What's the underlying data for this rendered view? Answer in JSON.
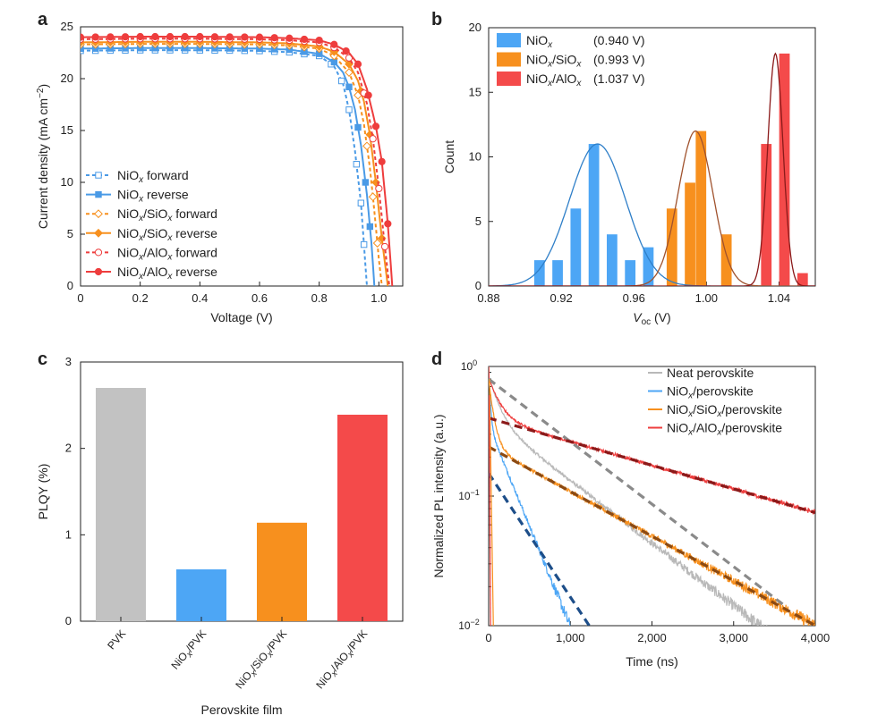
{
  "panel_letters": {
    "a": "a",
    "b": "b",
    "c": "c",
    "d": "d"
  },
  "chart_data": [
    {
      "panel": "a",
      "type": "line",
      "xlabel": "Voltage (V)",
      "ylabel_main": "Current density (mA cm",
      "ylabel_sup": "−2",
      "ylabel_end": ")",
      "xlim": [
        0,
        1.08
      ],
      "ylim": [
        0,
        25
      ],
      "xticks": [
        0,
        0.2,
        0.4,
        0.6,
        0.8,
        1.0
      ],
      "xtick_labels": [
        "0",
        "0.2",
        "0.4",
        "0.6",
        "0.8",
        "1.0"
      ],
      "yticks": [
        0,
        5,
        10,
        15,
        20,
        25
      ],
      "ytick_labels": [
        "0",
        "5",
        "10",
        "15",
        "20",
        "25"
      ],
      "legend_position": "bottom-left",
      "series": [
        {
          "name": "NiOx forward",
          "legend": [
            "NiO",
            "x",
            " forward"
          ],
          "color": "#4a9ae6",
          "dash": true,
          "marker": "square-open",
          "jsc": 22.7,
          "voc": 0.96,
          "vmax": 0.965,
          "points": [
            [
              0,
              22.7
            ],
            [
              0.1,
              22.72
            ],
            [
              0.2,
              22.75
            ],
            [
              0.3,
              22.75
            ],
            [
              0.4,
              22.74
            ],
            [
              0.5,
              22.72
            ],
            [
              0.6,
              22.68
            ],
            [
              0.7,
              22.55
            ],
            [
              0.8,
              22.2
            ],
            [
              0.85,
              21.2
            ],
            [
              0.88,
              19.5
            ],
            [
              0.9,
              17.0
            ],
            [
              0.92,
              13.0
            ],
            [
              0.94,
              8.0
            ],
            [
              0.96,
              0
            ]
          ],
          "marker_x": [
            0,
            0.05,
            0.1,
            0.15,
            0.2,
            0.25,
            0.3,
            0.35,
            0.4,
            0.45,
            0.5,
            0.55,
            0.6,
            0.65,
            0.7,
            0.75,
            0.8,
            0.84,
            0.875,
            0.9,
            0.925,
            0.94,
            0.95
          ]
        },
        {
          "name": "NiOx reverse",
          "legend": [
            "NiO",
            "x",
            " reverse"
          ],
          "color": "#4a9ae6",
          "dash": false,
          "marker": "square-filled",
          "jsc": 22.9,
          "voc": 0.985,
          "points": [
            [
              0,
              22.9
            ],
            [
              0.2,
              22.95
            ],
            [
              0.4,
              22.95
            ],
            [
              0.6,
              22.9
            ],
            [
              0.7,
              22.8
            ],
            [
              0.8,
              22.4
            ],
            [
              0.85,
              21.6
            ],
            [
              0.88,
              20.6
            ],
            [
              0.9,
              19.2
            ],
            [
              0.92,
              17.0
            ],
            [
              0.94,
              13.6
            ],
            [
              0.96,
              8.8
            ],
            [
              0.975,
              4.2
            ],
            [
              0.985,
              0
            ]
          ],
          "marker_x": [
            0,
            0.05,
            0.1,
            0.15,
            0.2,
            0.25,
            0.3,
            0.35,
            0.4,
            0.45,
            0.5,
            0.55,
            0.6,
            0.65,
            0.7,
            0.75,
            0.8,
            0.85,
            0.9,
            0.93,
            0.955,
            0.97
          ]
        },
        {
          "name": "NiOx/SiOx forward",
          "legend": [
            "NiO",
            "x",
            "/SiO",
            "x",
            " forward"
          ],
          "color": "#f7901e",
          "dash": true,
          "marker": "diamond-open",
          "jsc": 23.3,
          "voc": 1.01,
          "points": [
            [
              0,
              23.3
            ],
            [
              0.2,
              23.35
            ],
            [
              0.4,
              23.35
            ],
            [
              0.6,
              23.3
            ],
            [
              0.7,
              23.2
            ],
            [
              0.8,
              22.9
            ],
            [
              0.85,
              22.2
            ],
            [
              0.9,
              20.6
            ],
            [
              0.93,
              18.4
            ],
            [
              0.95,
              15.6
            ],
            [
              0.97,
              11.4
            ],
            [
              0.985,
              7.2
            ],
            [
              1.0,
              2.6
            ],
            [
              1.01,
              0
            ]
          ],
          "marker_x": [
            0,
            0.05,
            0.1,
            0.15,
            0.2,
            0.25,
            0.3,
            0.35,
            0.4,
            0.45,
            0.5,
            0.55,
            0.6,
            0.65,
            0.7,
            0.75,
            0.8,
            0.85,
            0.9,
            0.93,
            0.96,
            0.98,
            0.995
          ]
        },
        {
          "name": "NiOx/SiOx reverse",
          "legend": [
            "NiO",
            "x",
            "/SiO",
            "x",
            " reverse"
          ],
          "color": "#f7901e",
          "dash": false,
          "marker": "diamond-filled",
          "jsc": 23.5,
          "voc": 1.03,
          "points": [
            [
              0,
              23.5
            ],
            [
              0.2,
              23.55
            ],
            [
              0.4,
              23.55
            ],
            [
              0.6,
              23.5
            ],
            [
              0.7,
              23.4
            ],
            [
              0.8,
              23.1
            ],
            [
              0.85,
              22.6
            ],
            [
              0.9,
              21.4
            ],
            [
              0.93,
              19.8
            ],
            [
              0.95,
              17.8
            ],
            [
              0.97,
              14.6
            ],
            [
              0.99,
              10.0
            ],
            [
              1.01,
              4.6
            ],
            [
              1.03,
              0
            ]
          ],
          "marker_x": [
            0,
            0.05,
            0.1,
            0.15,
            0.2,
            0.25,
            0.3,
            0.35,
            0.4,
            0.45,
            0.5,
            0.55,
            0.6,
            0.65,
            0.7,
            0.75,
            0.8,
            0.85,
            0.9,
            0.94,
            0.97,
            0.99,
            1.01
          ]
        },
        {
          "name": "NiOx/AlOx forward",
          "legend": [
            "NiO",
            "x",
            "/AlO",
            "x",
            " forward"
          ],
          "color": "#ee3d3d",
          "dash": true,
          "marker": "circle-open",
          "jsc": 23.8,
          "voc": 1.035,
          "points": [
            [
              0,
              23.8
            ],
            [
              0.2,
              23.85
            ],
            [
              0.4,
              23.85
            ],
            [
              0.6,
              23.8
            ],
            [
              0.7,
              23.7
            ],
            [
              0.8,
              23.5
            ],
            [
              0.85,
              23.0
            ],
            [
              0.9,
              22.0
            ],
            [
              0.93,
              20.6
            ],
            [
              0.96,
              17.6
            ],
            [
              0.98,
              14.2
            ],
            [
              1.0,
              9.4
            ],
            [
              1.02,
              3.8
            ],
            [
              1.035,
              0
            ]
          ],
          "marker_x": [
            0,
            0.05,
            0.1,
            0.15,
            0.2,
            0.25,
            0.3,
            0.35,
            0.4,
            0.45,
            0.5,
            0.55,
            0.6,
            0.65,
            0.7,
            0.75,
            0.8,
            0.85,
            0.9,
            0.95,
            0.98,
            1.0,
            1.02
          ]
        },
        {
          "name": "NiOx/AlOx reverse",
          "legend": [
            "NiO",
            "x",
            "/AlO",
            "x",
            " reverse"
          ],
          "color": "#ee3d3d",
          "dash": false,
          "marker": "circle-filled",
          "jsc": 24.0,
          "voc": 1.045,
          "points": [
            [
              0,
              24.0
            ],
            [
              0.2,
              24.05
            ],
            [
              0.4,
              24.05
            ],
            [
              0.6,
              24.0
            ],
            [
              0.7,
              23.9
            ],
            [
              0.8,
              23.7
            ],
            [
              0.85,
              23.3
            ],
            [
              0.9,
              22.5
            ],
            [
              0.93,
              21.4
            ],
            [
              0.96,
              19.0
            ],
            [
              0.99,
              15.4
            ],
            [
              1.01,
              12.0
            ],
            [
              1.03,
              6.0
            ],
            [
              1.045,
              0
            ]
          ],
          "marker_x": [
            0,
            0.05,
            0.1,
            0.15,
            0.2,
            0.25,
            0.3,
            0.35,
            0.4,
            0.45,
            0.5,
            0.55,
            0.6,
            0.65,
            0.7,
            0.75,
            0.8,
            0.85,
            0.89,
            0.93,
            0.965,
            0.99,
            1.01,
            1.03
          ]
        }
      ]
    },
    {
      "panel": "b",
      "type": "bar",
      "xlabel_main": "V",
      "xlabel_sub": "oc",
      "xlabel_end": " (V)",
      "ylabel": "Count",
      "xlim": [
        0.88,
        1.06
      ],
      "ylim": [
        0,
        20
      ],
      "xticks": [
        0.88,
        0.92,
        0.96,
        1.0,
        1.04
      ],
      "xtick_labels": [
        "0.88",
        "0.92",
        "0.96",
        "1.00",
        "1.04"
      ],
      "yticks": [
        0,
        5,
        10,
        15,
        20
      ],
      "ytick_labels": [
        "0",
        "5",
        "10",
        "15",
        "20"
      ],
      "legend_position": "top-left",
      "series": [
        {
          "name": "NiOx",
          "legend": [
            "NiO",
            "x",
            ""
          ],
          "value_label": "(0.940 V)",
          "color": "#4da6f5",
          "curve_color": "#2f7fc8",
          "bars": [
            [
              0.908,
              2
            ],
            [
              0.918,
              2
            ],
            [
              0.928,
              6
            ],
            [
              0.938,
              11
            ],
            [
              0.948,
              4
            ],
            [
              0.958,
              2
            ],
            [
              0.968,
              3
            ]
          ],
          "fit": {
            "mu": 0.94,
            "sigma": 0.0155,
            "amp": 11
          }
        },
        {
          "name": "NiOx/SiOx",
          "legend": [
            "NiO",
            "x",
            "/SiO",
            "x"
          ],
          "value_label": "(0.993 V)",
          "color": "#f7901e",
          "curve_color": "#a0522d",
          "bars": [
            [
              0.981,
              6
            ],
            [
              0.991,
              8
            ],
            [
              0.997,
              12
            ],
            [
              1.011,
              4
            ]
          ],
          "fit": {
            "mu": 0.994,
            "sigma": 0.0095,
            "amp": 12
          }
        },
        {
          "name": "NiOx/AlOx",
          "legend": [
            "NiO",
            "x",
            "/AlO",
            "x"
          ],
          "value_label": "(1.037 V)",
          "color": "#f44a4a",
          "curve_color": "#8b1a1a",
          "bars": [
            [
              1.033,
              11
            ],
            [
              1.043,
              18
            ],
            [
              1.053,
              1
            ]
          ],
          "fit": {
            "mu": 1.038,
            "sigma": 0.0042,
            "amp": 18
          }
        }
      ],
      "bar_width": 0.0058
    },
    {
      "panel": "c",
      "type": "bar",
      "xlabel": "Perovskite film",
      "ylabel": "PLQY (%)",
      "ylim": [
        0,
        3
      ],
      "yticks": [
        0,
        1,
        2,
        3
      ],
      "ytick_labels": [
        "0",
        "1",
        "2",
        "3"
      ],
      "categories": [
        {
          "label": [
            "PVK"
          ]
        },
        {
          "label": [
            "NiO",
            "x",
            "/PVK"
          ]
        },
        {
          "label": [
            "NiO",
            "x",
            "/SiO",
            "x",
            "/PVK"
          ]
        },
        {
          "label": [
            "NiO",
            "x",
            "/AlO",
            "x",
            "/PVK"
          ]
        }
      ],
      "values": [
        2.7,
        0.6,
        1.14,
        2.39
      ],
      "colors": [
        "#c2c2c2",
        "#4da6f5",
        "#f7901e",
        "#f44a4a"
      ]
    },
    {
      "panel": "d",
      "type": "line",
      "xlabel": "Time (ns)",
      "ylabel": "Normalized PL intensity (a.u.)",
      "xlim": [
        0,
        4000
      ],
      "ylim_log10": [
        -2,
        0
      ],
      "xticks": [
        0,
        1000,
        2000,
        3000,
        4000
      ],
      "xtick_labels": [
        "0",
        "1,000",
        "2,000",
        "3,000",
        "4,000"
      ],
      "yticks_log10": [
        -2,
        -1,
        0
      ],
      "ytick_base": "10",
      "ytick_exps": [
        "−2",
        "−1",
        "0"
      ],
      "legend_position": "top-right",
      "series": [
        {
          "name": "Neat perovskite",
          "legend": [
            "Neat perovskite"
          ],
          "color": "#b9b9b9",
          "fit_color": "#8a8a8a",
          "a1": 0.45,
          "t1": 120,
          "a2": 0.4,
          "t2": 900,
          "fit_amp": 0.8,
          "fit_tau": 900,
          "fit_from": 0,
          "fit_to": 3600,
          "end": 3650
        },
        {
          "name": "NiOx/perovskite",
          "legend": [
            "NiO",
            "x",
            "/perovskite"
          ],
          "color": "#4da6f5",
          "fit_color": "#1d4e89",
          "a1": 0.6,
          "t1": 20,
          "a2": 0.35,
          "t2": 280,
          "fit_amp": 0.15,
          "fit_tau": 455,
          "fit_from": 0,
          "fit_to": 1300,
          "end": 1520
        },
        {
          "name": "NiOx/SiOx/perovskite",
          "legend": [
            "NiO",
            "x",
            "/SiO",
            "x",
            "/perovskite"
          ],
          "color": "#f7901e",
          "fit_color": "#8b4a13",
          "a1": 0.55,
          "t1": 60,
          "a2": 0.24,
          "t2": 1260,
          "fit_amp": 0.24,
          "fit_tau": 1260,
          "fit_from": 0,
          "fit_to": 4000,
          "end": 4000
        },
        {
          "name": "NiOx/AlOx/perovskite",
          "legend": [
            "NiO",
            "x",
            "/AlO",
            "x",
            "/perovskite"
          ],
          "color": "#ee3d3d",
          "fit_color": "#8b1a1a",
          "a1": 0.42,
          "t1": 130,
          "a2": 0.4,
          "t2": 2380,
          "fit_amp": 0.4,
          "fit_tau": 2380,
          "fit_from": 0,
          "fit_to": 4000,
          "end": 4000
        }
      ]
    }
  ]
}
